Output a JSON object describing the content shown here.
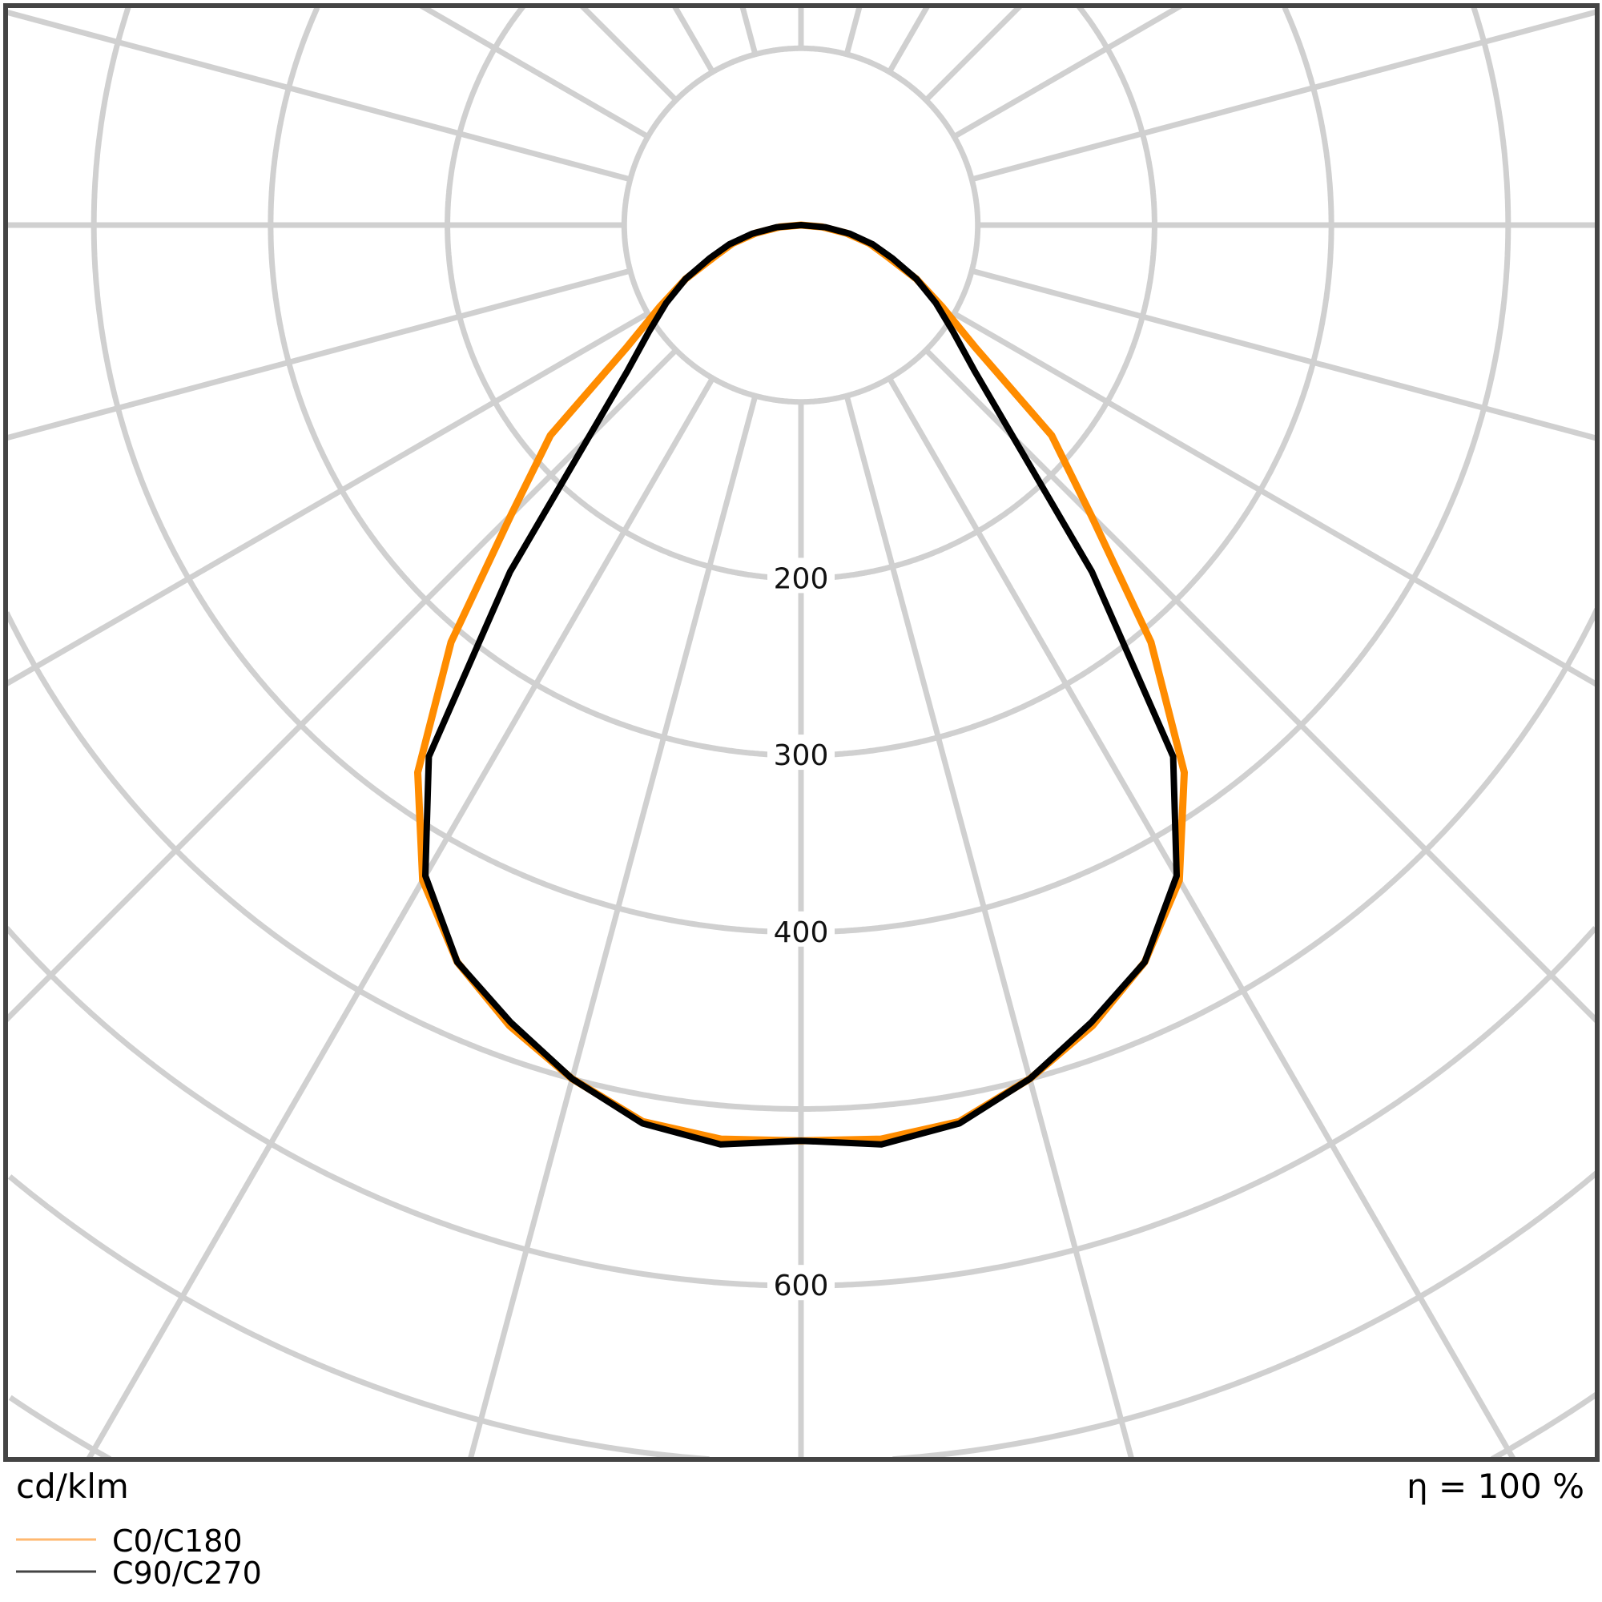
{
  "chart_data": {
    "type": "polar",
    "unit_label": "cd/klm",
    "efficiency_label": "η = 100 %",
    "radial_tick_labels": [
      "200",
      "300",
      "400",
      "600"
    ],
    "radial_ticks": [
      100,
      200,
      300,
      400,
      500,
      600,
      700,
      800,
      900,
      1000
    ],
    "labeled_ticks": [
      200,
      300,
      400,
      600
    ],
    "angle_step_deg": 15,
    "grid": true,
    "legend_placement": "bottom-left",
    "gamma_deg": [
      0,
      5,
      10,
      15,
      20,
      25,
      30,
      35,
      40,
      45,
      50,
      55,
      60,
      65,
      70,
      75,
      80,
      85,
      90
    ],
    "series": [
      {
        "name": "C0/C180",
        "color": "#ff8c00",
        "values": [
          518,
          519,
          515,
          500,
          482,
          460,
          428,
          378,
          308,
          232,
          185,
          120,
          92,
          72,
          52,
          40,
          26,
          12,
          0
        ]
      },
      {
        "name": "C90/C270",
        "color": "#000000",
        "values": [
          518,
          522,
          516,
          500,
          480,
          460,
          425,
          367,
          256,
          170,
          128,
          105,
          88,
          72,
          55,
          42,
          28,
          14,
          0
        ]
      }
    ]
  }
}
